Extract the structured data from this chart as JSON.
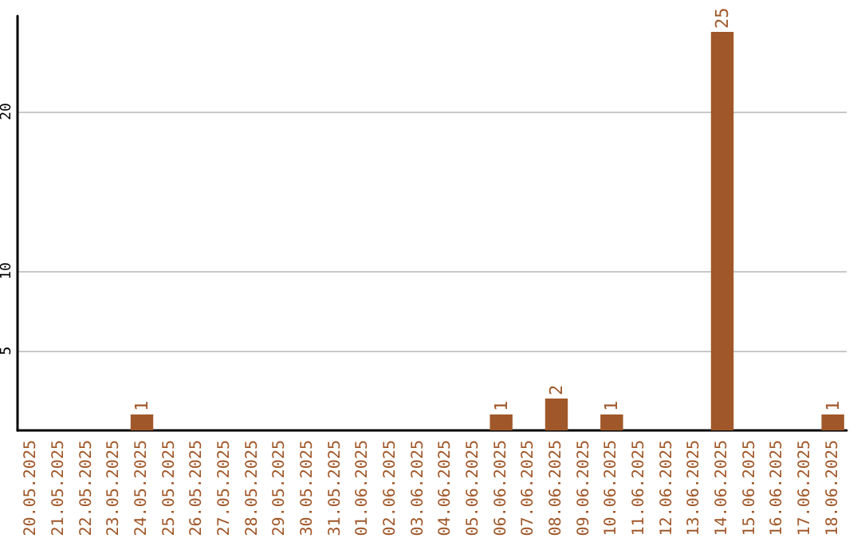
{
  "chart_data": {
    "type": "bar",
    "categories": [
      "20.05.2025",
      "21.05.2025",
      "22.05.2025",
      "23.05.2025",
      "24.05.2025",
      "25.05.2025",
      "26.05.2025",
      "27.05.2025",
      "28.05.2025",
      "29.05.2025",
      "30.05.2025",
      "31.05.2025",
      "01.06.2025",
      "02.06.2025",
      "03.06.2025",
      "04.06.2025",
      "05.06.2025",
      "06.06.2025",
      "07.06.2025",
      "08.06.2025",
      "09.06.2025",
      "10.06.2025",
      "11.06.2025",
      "12.06.2025",
      "13.06.2025",
      "14.06.2025",
      "15.06.2025",
      "16.06.2025",
      "17.06.2025",
      "18.06.2025"
    ],
    "values": [
      0,
      0,
      0,
      0,
      1,
      0,
      0,
      0,
      0,
      0,
      0,
      0,
      0,
      0,
      0,
      0,
      0,
      1,
      0,
      2,
      0,
      1,
      0,
      0,
      0,
      25,
      0,
      0,
      0,
      1
    ],
    "value_labels": [
      null,
      null,
      null,
      null,
      "1",
      null,
      null,
      null,
      null,
      null,
      null,
      null,
      null,
      null,
      null,
      null,
      null,
      "1",
      null,
      "2",
      null,
      "1",
      null,
      null,
      null,
      "25",
      null,
      null,
      null,
      "1"
    ],
    "color": "#a0582a",
    "ylim": [
      0,
      26
    ],
    "yticks": [
      5,
      10,
      20
    ],
    "grid": "y"
  }
}
